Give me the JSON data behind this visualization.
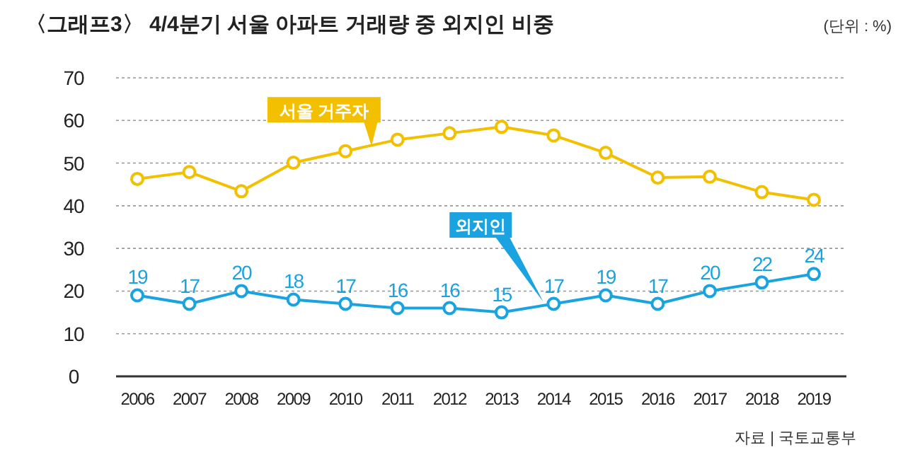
{
  "chart_data": {
    "type": "line",
    "title": "〈그래프3〉 4/4분기 서울 아파트 거래량 중 외지인 비중",
    "annotations": [
      "(단위 : %)",
      "자료 | 국토교통부"
    ],
    "categories": [
      "2006",
      "2007",
      "2008",
      "2009",
      "2010",
      "2011",
      "2012",
      "2013",
      "2014",
      "2015",
      "2016",
      "2017",
      "2018",
      "2019"
    ],
    "series": [
      {
        "name": "서울 거주자",
        "color": "#f2c000",
        "values": [
          46.3,
          47.9,
          43.4,
          50.1,
          52.8,
          55.5,
          57.0,
          58.5,
          56.5,
          52.4,
          46.6,
          46.8,
          43.2,
          41.4
        ]
      },
      {
        "name": "외지인",
        "color": "#1aa3e0",
        "values": [
          19,
          17,
          20,
          18,
          17,
          16,
          16,
          15,
          17,
          19,
          17,
          20,
          22,
          24
        ],
        "value_labels": [
          "19",
          "17",
          "20",
          "18",
          "17",
          "16",
          "16",
          "15",
          "17",
          "19",
          "17",
          "20",
          "22",
          "24"
        ]
      }
    ],
    "ylim": [
      0,
      70
    ],
    "yticks": [
      0,
      10,
      20,
      30,
      40,
      50,
      60,
      70
    ],
    "grid": "y",
    "marker": "circle",
    "line_style": "solid"
  }
}
